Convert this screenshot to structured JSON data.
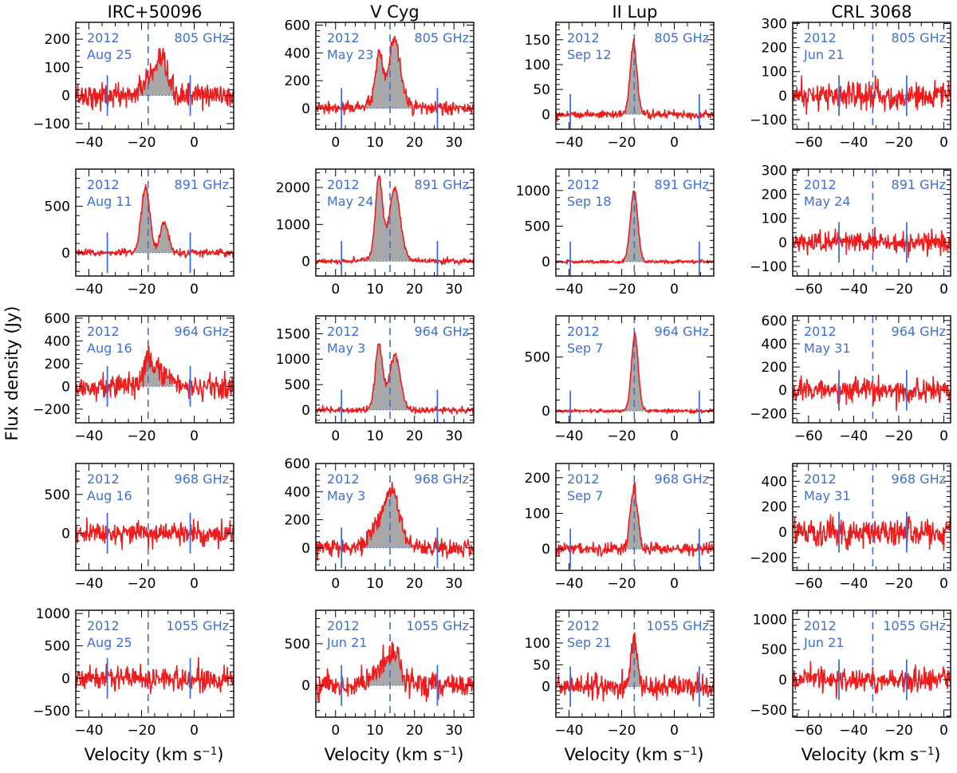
{
  "figure": {
    "ylabel": "Flux density (Jy)",
    "xlabel_main": "Velocity (km s",
    "xlabel_sup": "−1",
    "xlabel_close": ")"
  },
  "colors": {
    "spectrum": "#ee1c1c",
    "fill": "#a8a8a8",
    "marker": "#3d6fd6",
    "annotation": "#3d6fd6",
    "axis": "#000000"
  },
  "chart_data": [
    {
      "type": "line",
      "source": "IRC+50096",
      "xlabel": "Velocity (km s−1)",
      "ylabel": "Flux density (Jy)",
      "xlim": [
        -45,
        15
      ],
      "xticks": [
        -40,
        -20,
        0
      ],
      "systemic_velocity": -17.5,
      "boundary_markers": [
        -33,
        -1.5
      ],
      "panels": [
        {
          "frequency": "805 GHz",
          "year": "2012",
          "date": "Aug 25",
          "ylim": [
            -120,
            260
          ],
          "yticks": [
            -100,
            0,
            100,
            200
          ],
          "noise": 22,
          "components": [
            {
              "center": -17,
              "width": 2.5,
              "amp": 65
            },
            {
              "center": -12,
              "width": 2,
              "amp": 110
            }
          ],
          "detected": true
        },
        {
          "frequency": "891 GHz",
          "year": "2012",
          "date": "Aug 11",
          "ylim": [
            -250,
            900
          ],
          "yticks": [
            0,
            500
          ],
          "noise": 20,
          "components": [
            {
              "center": -18.5,
              "width": 1.6,
              "amp": 720
            },
            {
              "center": -11.5,
              "width": 1.5,
              "amp": 330
            }
          ],
          "detected": true
        },
        {
          "frequency": "964 GHz",
          "year": "2012",
          "date": "Aug 16",
          "ylim": [
            -320,
            620
          ],
          "yticks": [
            -200,
            0,
            200,
            400,
            600
          ],
          "noise": 55,
          "components": [
            {
              "center": -17.5,
              "width": 1.5,
              "amp": 250
            },
            {
              "center": -13,
              "width": 3,
              "amp": 120
            }
          ],
          "detected": true
        },
        {
          "frequency": "968 GHz",
          "year": "2012",
          "date": "Aug 16",
          "ylim": [
            -480,
            900
          ],
          "yticks": [
            0,
            500
          ],
          "noise": 70,
          "components": [],
          "detected": false
        },
        {
          "frequency": "1055 GHz",
          "year": "2012",
          "date": "Aug 25",
          "ylim": [
            -600,
            1050
          ],
          "yticks": [
            -500,
            0,
            500,
            1000
          ],
          "noise": 95,
          "components": [],
          "detected": false
        }
      ]
    },
    {
      "type": "line",
      "source": "V Cyg",
      "xlabel": "Velocity (km s−1)",
      "ylabel": "Flux density (Jy)",
      "xlim": [
        -5,
        35
      ],
      "xticks": [
        0,
        10,
        20,
        30
      ],
      "systemic_velocity": 13.8,
      "boundary_markers": [
        1.5,
        25.8
      ],
      "panels": [
        {
          "frequency": "805 GHz",
          "year": "2012",
          "date": "May 23",
          "ylim": [
            -150,
            620
          ],
          "yticks": [
            0,
            200,
            400,
            600
          ],
          "noise": 22,
          "components": [
            {
              "center": 11,
              "width": 0.9,
              "amp": 330
            },
            {
              "center": 15,
              "width": 1.4,
              "amp": 440
            },
            {
              "center": 13,
              "width": 4,
              "amp": 60
            }
          ],
          "detected": true
        },
        {
          "frequency": "891 GHz",
          "year": "2012",
          "date": "May 24",
          "ylim": [
            -400,
            2500
          ],
          "yticks": [
            0,
            1000,
            2000
          ],
          "noise": 35,
          "components": [
            {
              "center": 11,
              "width": 0.9,
              "amp": 2150
            },
            {
              "center": 15,
              "width": 1.4,
              "amp": 1850
            },
            {
              "center": 13,
              "width": 3.5,
              "amp": 150
            }
          ],
          "detected": true
        },
        {
          "frequency": "964 GHz",
          "year": "2012",
          "date": "May 3",
          "ylim": [
            -250,
            1850
          ],
          "yticks": [
            0,
            500,
            1000,
            1500
          ],
          "noise": 35,
          "components": [
            {
              "center": 11,
              "width": 0.9,
              "amp": 1250
            },
            {
              "center": 15,
              "width": 1.4,
              "amp": 1020
            },
            {
              "center": 13,
              "width": 3.5,
              "amp": 60
            }
          ],
          "detected": true
        },
        {
          "frequency": "968 GHz",
          "year": "2012",
          "date": "May 3",
          "ylim": [
            -160,
            600
          ],
          "yticks": [
            0,
            200,
            400,
            600
          ],
          "noise": 32,
          "components": [
            {
              "center": 11.5,
              "width": 2,
              "amp": 140
            },
            {
              "center": 14.7,
              "width": 1.5,
              "amp": 290
            },
            {
              "center": 13,
              "width": 3.5,
              "amp": 90
            }
          ],
          "detected": true
        },
        {
          "frequency": "1055 GHz",
          "year": "2012",
          "date": "Jun 21",
          "ylim": [
            -380,
            900
          ],
          "yticks": [
            0,
            500
          ],
          "noise": 75,
          "components": [
            {
              "center": 12,
              "width": 2.5,
              "amp": 220
            },
            {
              "center": 15,
              "width": 1.3,
              "amp": 300
            }
          ],
          "detected": true
        }
      ]
    },
    {
      "type": "line",
      "source": "II Lup",
      "xlabel": "Velocity (km s−1)",
      "ylabel": "Flux density (Jy)",
      "xlim": [
        -45,
        15
      ],
      "xticks": [
        -40,
        -20,
        0
      ],
      "systemic_velocity": -15.2,
      "boundary_markers": [
        -39.5,
        9.5
      ],
      "panels": [
        {
          "frequency": "805 GHz",
          "year": "2012",
          "date": "Sep 12",
          "ylim": [
            -30,
            185
          ],
          "yticks": [
            0,
            50,
            100,
            150
          ],
          "noise": 4,
          "components": [
            {
              "center": -15.5,
              "width": 1.3,
              "amp": 140
            }
          ],
          "detected": true
        },
        {
          "frequency": "891 GHz",
          "year": "2012",
          "date": "Sep 18",
          "ylim": [
            -200,
            1300
          ],
          "yticks": [
            0,
            500,
            1000
          ],
          "noise": 12,
          "components": [
            {
              "center": -15.3,
              "width": 1.4,
              "amp": 1000
            }
          ],
          "detected": true
        },
        {
          "frequency": "964 GHz",
          "year": "2012",
          "date": "Sep 7",
          "ylim": [
            -110,
            880
          ],
          "yticks": [
            0,
            500
          ],
          "noise": 9,
          "components": [
            {
              "center": -15,
              "width": 1.3,
              "amp": 700
            }
          ],
          "detected": true
        },
        {
          "frequency": "968 GHz",
          "year": "2012",
          "date": "Sep 7",
          "ylim": [
            -60,
            240
          ],
          "yticks": [
            0,
            100,
            200
          ],
          "noise": 9,
          "components": [
            {
              "center": -15.3,
              "width": 1.4,
              "amp": 175
            }
          ],
          "detected": true
        },
        {
          "frequency": "1055 GHz",
          "year": "2012",
          "date": "Sep 21",
          "ylim": [
            -70,
            175
          ],
          "yticks": [
            0,
            50,
            100
          ],
          "noise": 13,
          "components": [
            {
              "center": -15.3,
              "width": 1.2,
              "amp": 110
            }
          ],
          "detected": true
        }
      ]
    },
    {
      "type": "line",
      "source": "CRL 3068",
      "xlabel": "Velocity (km s−1)",
      "ylabel": "Flux density (Jy)",
      "xlim": [
        -67,
        3
      ],
      "xticks": [
        -60,
        -40,
        -20,
        0
      ],
      "systemic_velocity": -31.5,
      "boundary_markers": [
        -46.5,
        -16.5
      ],
      "panels": [
        {
          "frequency": "805 GHz",
          "year": "2012",
          "date": "Jun 21",
          "ylim": [
            -140,
            305
          ],
          "yticks": [
            -100,
            0,
            100,
            200,
            300
          ],
          "noise": 28,
          "components": [],
          "detected": false
        },
        {
          "frequency": "891 GHz",
          "year": "2012",
          "date": "May 24",
          "ylim": [
            -140,
            305
          ],
          "yticks": [
            -100,
            0,
            100,
            200,
            300
          ],
          "noise": 22,
          "components": [],
          "detected": false
        },
        {
          "frequency": "964 GHz",
          "year": "2012",
          "date": "May 31",
          "ylim": [
            -280,
            640
          ],
          "yticks": [
            -200,
            0,
            200,
            400,
            600
          ],
          "noise": 50,
          "components": [],
          "detected": false
        },
        {
          "frequency": "968 GHz",
          "year": "2012",
          "date": "May 31",
          "ylim": [
            -300,
            540
          ],
          "yticks": [
            -200,
            0,
            200,
            400
          ],
          "noise": 55,
          "components": [],
          "detected": false
        },
        {
          "frequency": "1055 GHz",
          "year": "2012",
          "date": "Jun 21",
          "ylim": [
            -620,
            1150
          ],
          "yticks": [
            -500,
            0,
            500,
            1000
          ],
          "noise": 90,
          "components": [],
          "detected": false
        }
      ]
    }
  ]
}
